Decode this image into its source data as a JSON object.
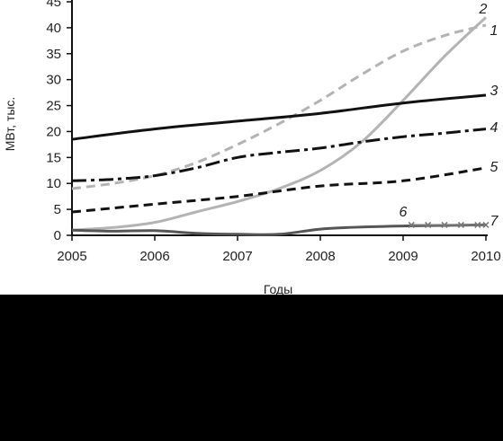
{
  "chart_data": {
    "type": "line",
    "xlabel": "Годы",
    "ylabel": "МВт, тыс.",
    "xlim": [
      2005,
      2010
    ],
    "ylim": [
      0,
      45
    ],
    "x_ticks": [
      "2005",
      "2006",
      "2007",
      "2008",
      "2009",
      "2010"
    ],
    "y_ticks": [
      "0",
      "5",
      "10",
      "15",
      "20",
      "25",
      "30",
      "35",
      "40",
      "45"
    ],
    "grid": false,
    "legend": "none",
    "series": [
      {
        "name": "1",
        "color": "#b3b3b3",
        "dash": "dashed",
        "x": [
          2005,
          2005.5,
          2006,
          2006.5,
          2007,
          2007.5,
          2008,
          2008.5,
          2009,
          2009.5,
          2010
        ],
        "y": [
          9,
          10,
          11.5,
          14,
          17.5,
          21.5,
          26,
          31,
          35.5,
          38.5,
          40.5
        ]
      },
      {
        "name": "2",
        "color": "#b3b3b3",
        "dash": "solid",
        "x": [
          2005,
          2005.5,
          2006,
          2006.5,
          2007,
          2007.5,
          2008,
          2008.5,
          2009,
          2009.5,
          2010
        ],
        "y": [
          1,
          1.5,
          2.5,
          4.5,
          6.5,
          9,
          12.5,
          18,
          26,
          34.5,
          42
        ]
      },
      {
        "name": "3",
        "color": "#111111",
        "dash": "solid",
        "x": [
          2005,
          2006,
          2007,
          2008,
          2009,
          2010
        ],
        "y": [
          18.5,
          20.5,
          22,
          23.5,
          25.5,
          27
        ]
      },
      {
        "name": "4",
        "color": "#111111",
        "dash": "dashdot",
        "x": [
          2005,
          2005.5,
          2006,
          2006.5,
          2007,
          2007.5,
          2008,
          2008.5,
          2009,
          2009.5,
          2010
        ],
        "y": [
          10.5,
          10.8,
          11.5,
          13,
          15,
          16,
          16.8,
          18,
          19,
          19.7,
          20.5
        ]
      },
      {
        "name": "5",
        "color": "#111111",
        "dash": "dashed",
        "x": [
          2005,
          2006,
          2007,
          2008,
          2009,
          2010
        ],
        "y": [
          4.5,
          6,
          7.5,
          9.5,
          10.5,
          13
        ]
      },
      {
        "name": "6",
        "color": "#555555",
        "dash": "solid",
        "x": [
          2005,
          2005.5,
          2006,
          2006.5,
          2007,
          2007.5,
          2008,
          2008.5,
          2009,
          2009.5,
          2010
        ],
        "y": [
          1,
          0.8,
          0.9,
          0.4,
          0.2,
          0.2,
          1.2,
          1.6,
          1.8,
          1.9,
          2
        ]
      },
      {
        "name": "7",
        "color": "#777777",
        "dash": "markers",
        "x": [
          2009.1,
          2009.3,
          2009.5,
          2009.7,
          2009.9,
          2010
        ],
        "y": [
          2,
          2,
          2,
          2,
          2,
          2
        ]
      }
    ],
    "series_labels": [
      {
        "text": "1",
        "series": "1"
      },
      {
        "text": "2",
        "series": "2"
      },
      {
        "text": "3",
        "series": "3"
      },
      {
        "text": "4",
        "series": "4"
      },
      {
        "text": "5",
        "series": "5"
      },
      {
        "text": "6",
        "series": "6"
      },
      {
        "text": "7",
        "series": "7"
      }
    ]
  }
}
